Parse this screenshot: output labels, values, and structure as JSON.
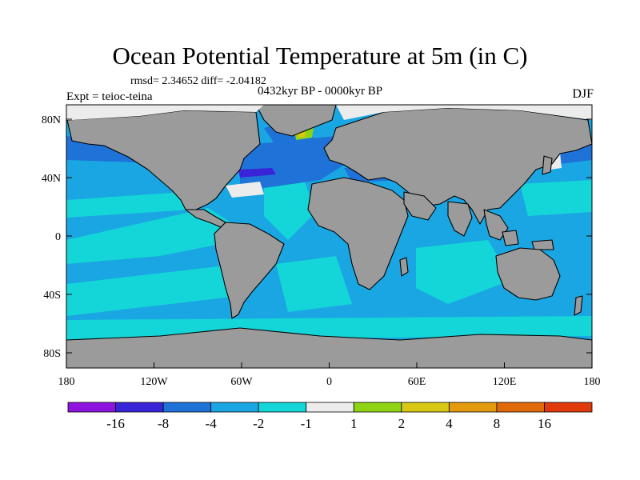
{
  "title": "Ocean Potential Temperature at 5m (in C)",
  "stats_label": "rmsd= 2.34652 diff= -2.04182",
  "experiment_label": "Expt = teioc-teina",
  "period_label": "0432kyr BP - 0000kyr BP",
  "season_label": "DJF",
  "lat_ticks": [
    "80N",
    "40N",
    "0",
    "40S",
    "80S"
  ],
  "lon_ticks": [
    "180",
    "120W",
    "60W",
    "0",
    "60E",
    "120E",
    "180"
  ],
  "colorbar": {
    "labels": [
      "-16",
      "-8",
      "-4",
      "-2",
      "-1",
      "1",
      "2",
      "4",
      "8",
      "16"
    ],
    "colors": [
      "#8d14e0",
      "#3a24d8",
      "#1e72d8",
      "#1aa6e2",
      "#14d6d8",
      "#ececec",
      "#8fd414",
      "#d8c814",
      "#e49a0e",
      "#e06a0a",
      "#e03a0a"
    ]
  },
  "colors": {
    "land": "#9b9b9b",
    "ocean_base": "#1aa6e2",
    "ice_mask": "#ececec",
    "coast": "#000000"
  }
}
